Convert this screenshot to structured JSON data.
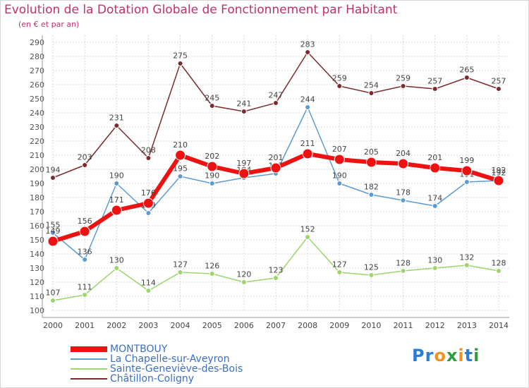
{
  "title": "Evolution de la Dotation Globale de Fonctionnement par Habitant",
  "subtitle": "(en € et par an)",
  "logo_text": "Proxiti",
  "colors": {
    "title": "#c0306a",
    "legend_text": "#3c6fc4",
    "grid": "#d8d8d8"
  },
  "chart_data": {
    "type": "line",
    "title": "Evolution de la Dotation Globale de Fonctionnement par Habitant",
    "subtitle": "(en € et par an)",
    "x": [
      "2000",
      "2001",
      "2002",
      "2003",
      "2004",
      "2005",
      "2006",
      "2007",
      "2008",
      "2009",
      "2010",
      "2011",
      "2012",
      "2013",
      "2014"
    ],
    "y_ticks": [
      100,
      110,
      120,
      130,
      140,
      150,
      160,
      170,
      180,
      190,
      200,
      210,
      220,
      230,
      240,
      250,
      260,
      270,
      280,
      290
    ],
    "ylim": [
      100,
      290
    ],
    "grid": true,
    "legend_position": "bottom-left",
    "series": [
      {
        "name": "Châtillon-Coligny",
        "color": "#7a2b2e",
        "values": [
          194,
          203,
          231,
          208,
          275,
          245,
          241,
          247,
          283,
          259,
          254,
          259,
          257,
          265,
          257
        ],
        "labels": [
          "194",
          "203",
          "231",
          "208",
          "275",
          "245",
          "241",
          "247",
          "283",
          "259",
          "254",
          "259",
          "257",
          "265",
          "257"
        ]
      },
      {
        "name": "La Chapelle-sur-Aveyron",
        "color": "#5b9bd0",
        "values": [
          155,
          136,
          190,
          169,
          195,
          190,
          194,
          197,
          244,
          190,
          182,
          178,
          174,
          191,
          192
        ],
        "labels": [
          "155",
          "136",
          "190",
          "169",
          "195",
          "190",
          "194",
          "197",
          "244",
          "190",
          "182",
          "178",
          "174",
          "191",
          "192"
        ]
      },
      {
        "name": "Sainte-Geneviève-des-Bois",
        "color": "#9bd56b",
        "values": [
          107,
          111,
          130,
          114,
          127,
          126,
          120,
          123,
          152,
          127,
          125,
          128,
          130,
          132,
          128
        ],
        "labels": [
          "107",
          "111",
          "130",
          "114",
          "127",
          "126",
          "120",
          "123",
          "152",
          "127",
          "125",
          "128",
          "130",
          "132",
          "128"
        ]
      },
      {
        "name": "MONTBOUY",
        "color": "#ee1111",
        "values": [
          149,
          156,
          171,
          176,
          210,
          202,
          197,
          201,
          211,
          207,
          205,
          204,
          201,
          199,
          192
        ],
        "labels": [
          "149",
          "156",
          "171",
          "176",
          "210",
          "202",
          "197",
          "201",
          "211",
          "207",
          "205",
          "204",
          "201",
          "199",
          "192"
        ]
      }
    ],
    "legend_order": [
      "MONTBOUY",
      "La Chapelle-sur-Aveyron",
      "Sainte-Geneviève-des-Bois",
      "Châtillon-Coligny"
    ]
  }
}
